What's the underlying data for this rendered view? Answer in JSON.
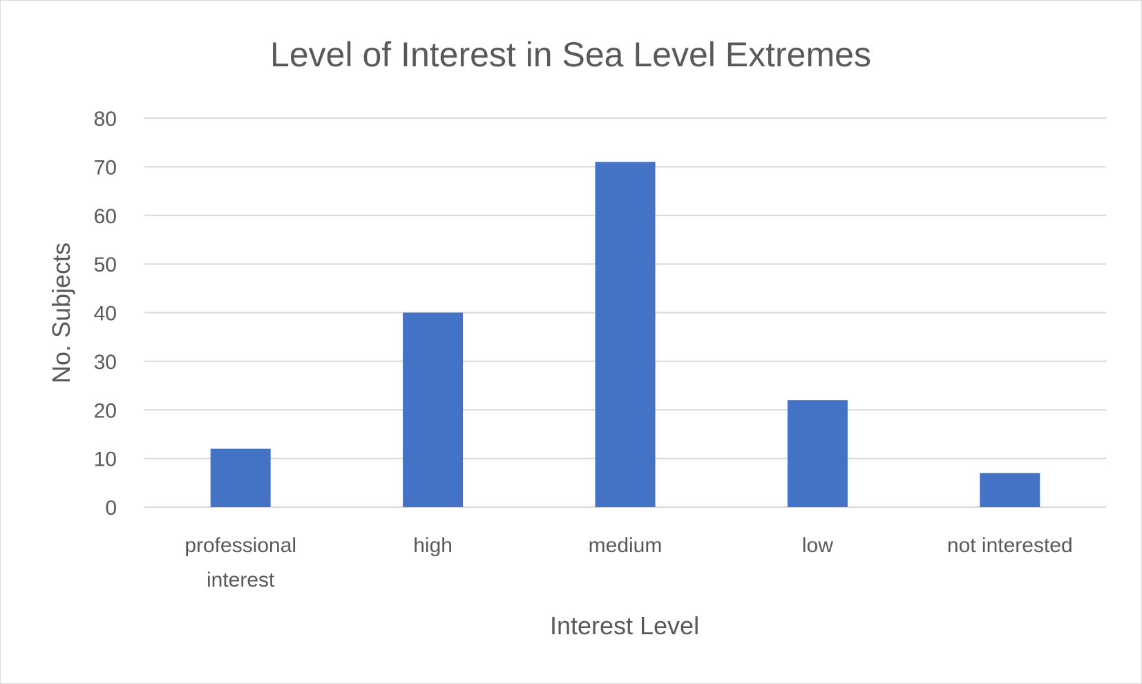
{
  "chart_data": {
    "type": "bar",
    "title": "Level of Interest in Sea Level Extremes",
    "xlabel": "Interest Level",
    "ylabel": "No. Subjects",
    "categories": [
      [
        "professional",
        "interest"
      ],
      [
        "high"
      ],
      [
        "medium"
      ],
      [
        "low"
      ],
      [
        "not interested"
      ]
    ],
    "values": [
      12,
      40,
      71,
      22,
      7
    ],
    "ylim": [
      0,
      80
    ],
    "yticks": [
      0,
      10,
      20,
      30,
      40,
      50,
      60,
      70,
      80
    ],
    "grid": true,
    "legend": "none",
    "bar_color": "#4472c4",
    "grid_color": "#d9d9d9",
    "text_color": "#595959"
  }
}
